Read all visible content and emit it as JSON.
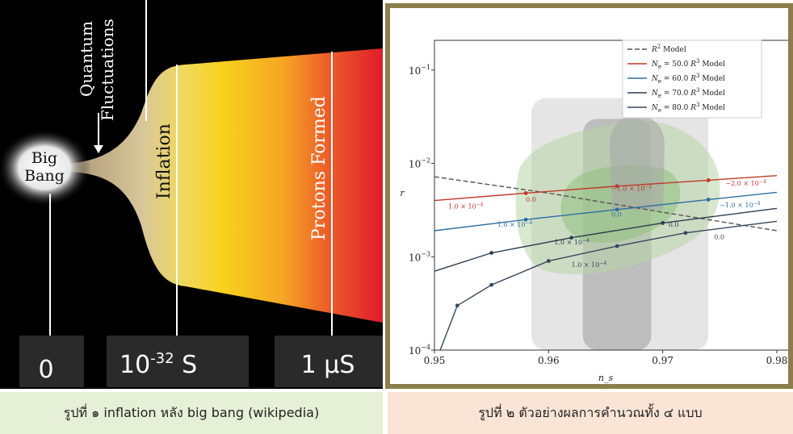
{
  "left_figure": {
    "big_bang_label_line1": "Big",
    "big_bang_label_line2": "Bang",
    "quantum_label_line1": "Quantum",
    "quantum_label_line2": "Fluctuations",
    "inflation_label": "Inflation",
    "protons_label": "Protons Formed",
    "timeline": [
      {
        "label": "0"
      },
      {
        "label_base": "10",
        "label_exp": "-32",
        "label_unit": " S"
      },
      {
        "label": "1 μS"
      }
    ],
    "colors": {
      "background": "#000000",
      "inflation_cone": "#d8c79a",
      "yellow": "#f7d21c",
      "orange": "#f08a1e",
      "red": "#e01c2a"
    }
  },
  "captions": {
    "left": "รูปที่ ๑ inflation หลัง big bang (wikipedia)",
    "right": "รูปที่ ๒ ตัวอย่างผลการคำนวณทั้ง ๔ แบบ"
  },
  "chart_data": {
    "type": "line",
    "xlabel": "n_s",
    "ylabel": "r",
    "xlim": [
      0.95,
      0.98
    ],
    "ylim": [
      0.0001,
      0.2
    ],
    "y_scale": "log",
    "x_ticks": [
      "0.95",
      "0.96",
      "0.97",
      "0.98"
    ],
    "y_ticks": [
      {
        "base": "10",
        "exp": "−4",
        "value": 0.0001
      },
      {
        "base": "10",
        "exp": "−3",
        "value": 0.001
      },
      {
        "base": "10",
        "exp": "−2",
        "value": 0.01
      },
      {
        "base": "10",
        "exp": "−1",
        "value": 0.1
      }
    ],
    "legend_position": "top-right",
    "series": [
      {
        "name_main": "R",
        "name_sup": "2",
        "name_rest": " Model",
        "color": "#555555",
        "dash": true,
        "x": [
          0.95,
          0.96,
          0.97,
          0.98
        ],
        "y": [
          0.0072,
          0.0048,
          0.003,
          0.0019
        ]
      },
      {
        "name_main": "N",
        "name_sub": "e",
        "name_rest": " = 50.0  ",
        "name_main2": "R",
        "name_sup2": "3",
        "name_rest2": " Model",
        "color": "#c0392b",
        "x": [
          0.95,
          0.958,
          0.966,
          0.974,
          0.98
        ],
        "y": [
          0.004,
          0.0048,
          0.0057,
          0.0066,
          0.0074
        ]
      },
      {
        "name_main": "N",
        "name_sub": "e",
        "name_rest": " = 60.0  ",
        "name_main2": "R",
        "name_sup2": "3",
        "name_rest2": " Model",
        "color": "#2e6da4",
        "x": [
          0.95,
          0.958,
          0.966,
          0.974,
          0.98
        ],
        "y": [
          0.0019,
          0.0025,
          0.0032,
          0.0041,
          0.0049
        ]
      },
      {
        "name_main": "N",
        "name_sub": "e",
        "name_rest": " = 70.0  ",
        "name_main2": "R",
        "name_sup2": "3",
        "name_rest2": " Model",
        "color": "#2c3e50",
        "x": [
          0.95,
          0.955,
          0.962,
          0.97,
          0.98
        ],
        "y": [
          0.0007,
          0.0011,
          0.0016,
          0.0023,
          0.0033
        ]
      },
      {
        "name_main": "N",
        "name_sub": "e",
        "name_rest": " = 80.0  ",
        "name_main2": "R",
        "name_sup2": "3",
        "name_rest2": " Model",
        "color": "#34495e",
        "x": [
          0.9505,
          0.952,
          0.955,
          0.96,
          0.966,
          0.972,
          0.98
        ],
        "y": [
          0.0001,
          0.0003,
          0.0005,
          0.0009,
          0.0013,
          0.0018,
          0.0024
        ]
      }
    ],
    "point_annotations": [
      {
        "text": "1.0 × 10",
        "sup": "−4",
        "x": 0.9512,
        "y": 0.0033,
        "color": "#c0392b"
      },
      {
        "text": "0.0",
        "x": 0.958,
        "y": 0.0039,
        "color": "#c0392b"
      },
      {
        "text": "−1.0 × 10",
        "sup": "−4",
        "x": 0.9655,
        "y": 0.0051,
        "color": "#c0392b"
      },
      {
        "text": "−2.0 × 10",
        "sup": "−4",
        "x": 0.9755,
        "y": 0.0058,
        "color": "#c0392b"
      },
      {
        "text": "1.0 × 10",
        "sup": "−4",
        "x": 0.9555,
        "y": 0.0021,
        "color": "#2e6da4"
      },
      {
        "text": "0.0",
        "x": 0.9655,
        "y": 0.0027,
        "color": "#2e6da4"
      },
      {
        "text": "−1.0 × 10",
        "sup": "−4",
        "x": 0.975,
        "y": 0.0034,
        "color": "#2e6da4"
      },
      {
        "text": "1.0 × 10",
        "sup": "−4",
        "x": 0.9605,
        "y": 0.00135,
        "color": "#2c3e50"
      },
      {
        "text": "0.0",
        "x": 0.9705,
        "y": 0.0021,
        "color": "#2c3e50"
      },
      {
        "text": "1.0 × 10",
        "sup": "−4",
        "x": 0.962,
        "y": 0.00078,
        "color": "#34495e"
      },
      {
        "text": "0.0",
        "x": 0.9745,
        "y": 0.00155,
        "color": "#34495e"
      }
    ],
    "bands": [
      {
        "fill": "#e5e5e5",
        "x": [
          0.9585,
          0.974
        ],
        "y": [
          0.0001,
          0.05
        ]
      },
      {
        "fill": "#bdbdbd",
        "x": [
          0.963,
          0.969
        ],
        "y": [
          0.0001,
          0.03
        ]
      }
    ]
  }
}
